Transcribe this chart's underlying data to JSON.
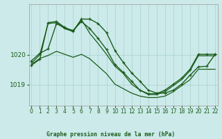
{
  "background_color": "#cceaea",
  "line_color": "#1a5c1a",
  "grid_color": "#aacfcf",
  "title": "Graphe pression niveau de la mer (hPa)",
  "xlim": [
    -0.3,
    22.3
  ],
  "ylim": [
    1018.3,
    1021.7
  ],
  "yticks": [
    1019,
    1020
  ],
  "xticks": [
    0,
    1,
    2,
    3,
    4,
    5,
    6,
    7,
    8,
    9,
    10,
    11,
    12,
    13,
    14,
    15,
    16,
    17,
    18,
    19,
    20,
    21,
    22
  ],
  "series": [
    {
      "x": [
        0,
        1,
        2,
        3,
        4,
        5,
        6,
        7,
        8,
        9,
        10,
        11,
        12,
        13,
        14,
        15,
        16,
        17,
        18,
        19,
        20,
        21,
        22
      ],
      "y": [
        1019.8,
        1020.05,
        1020.2,
        1021.05,
        1020.9,
        1020.82,
        1021.12,
        1020.88,
        1020.55,
        1020.18,
        1019.68,
        1019.42,
        1019.12,
        1018.82,
        1018.7,
        1018.7,
        1018.82,
        1019.02,
        1019.22,
        1019.52,
        1020.02,
        1020.02,
        1020.02
      ],
      "marker": true,
      "lw": 1.0
    },
    {
      "x": [
        0,
        1,
        2,
        3,
        4,
        5,
        6,
        7,
        8,
        9,
        10,
        11,
        12,
        13,
        14,
        15,
        16,
        17,
        18,
        19,
        20,
        21,
        22
      ],
      "y": [
        1019.72,
        1020.0,
        1021.05,
        1021.08,
        1020.88,
        1020.78,
        1021.18,
        1020.72,
        1020.38,
        1020.02,
        1019.62,
        1019.38,
        1019.02,
        1018.82,
        1018.67,
        1018.67,
        1018.77,
        1018.97,
        1019.17,
        1019.47,
        1019.97,
        1019.97,
        1019.97
      ],
      "marker": false,
      "lw": 0.9
    },
    {
      "x": [
        0,
        1,
        2,
        3,
        4,
        5,
        6,
        7,
        8,
        9,
        10,
        11,
        12,
        13,
        14,
        15,
        16,
        17,
        18,
        19,
        20,
        21,
        22
      ],
      "y": [
        1019.68,
        1019.88,
        1019.98,
        1020.12,
        1020.02,
        1019.92,
        1020.02,
        1019.87,
        1019.62,
        1019.37,
        1019.02,
        1018.87,
        1018.72,
        1018.62,
        1018.57,
        1018.57,
        1018.62,
        1018.77,
        1018.97,
        1019.17,
        1019.52,
        1019.52,
        1019.52
      ],
      "marker": false,
      "lw": 0.9
    },
    {
      "x": [
        0,
        1,
        2,
        3,
        4,
        5,
        6,
        7,
        8,
        9,
        10,
        11,
        12,
        13,
        14,
        15,
        16,
        17,
        18,
        19,
        20,
        21,
        22
      ],
      "y": [
        1019.65,
        1019.85,
        1021.08,
        1021.12,
        1020.92,
        1020.8,
        1021.2,
        1021.2,
        1021.05,
        1020.75,
        1020.15,
        1019.75,
        1019.4,
        1019.12,
        1018.82,
        1018.72,
        1018.72,
        1018.82,
        1019.02,
        1019.32,
        1019.6,
        1019.62,
        1020.02
      ],
      "marker": true,
      "lw": 1.0
    }
  ]
}
